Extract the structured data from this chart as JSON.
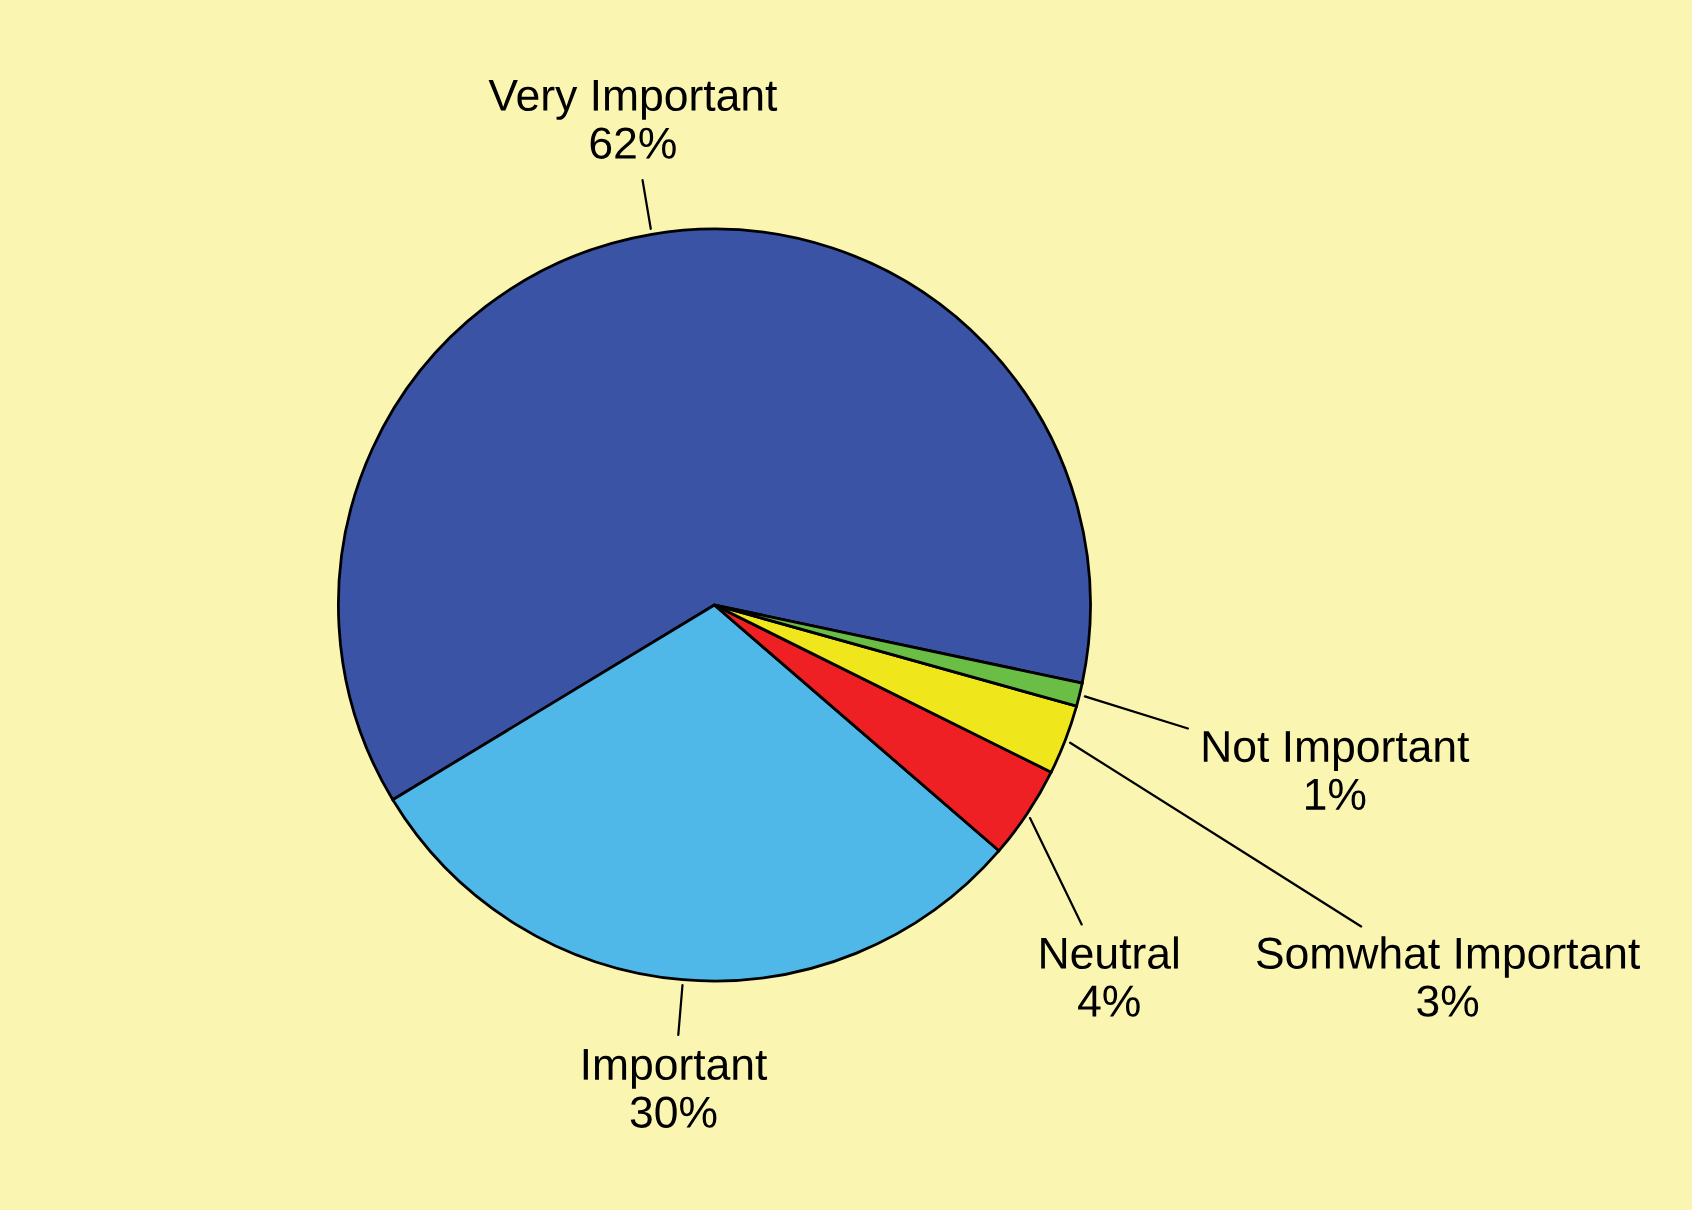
{
  "chart_data": {
    "type": "pie",
    "categories": [
      "Very Important",
      "Important",
      "Neutral",
      "Somwhat Important",
      "Not Important"
    ],
    "values": [
      62,
      30,
      4,
      3,
      1
    ],
    "value_labels": [
      "62%",
      "30%",
      "4%",
      "3%",
      "1%"
    ],
    "colors": [
      "#3a53a4",
      "#4fb8e8",
      "#ee2024",
      "#f0e61c",
      "#6abd45"
    ]
  }
}
